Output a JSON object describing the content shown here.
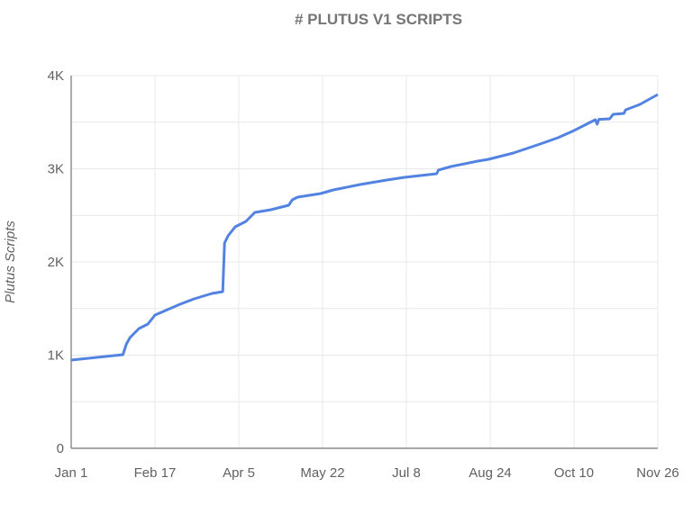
{
  "chart_data": {
    "type": "line",
    "title": "# PLUTUS V1 SCRIPTS",
    "xlabel": "",
    "ylabel": "Plutus Scripts",
    "x_ticks": [
      "Jan 1",
      "Feb 17",
      "Apr 5",
      "May 22",
      "Jul 8",
      "Aug 24",
      "Oct 10",
      "Nov 26"
    ],
    "y_ticks": [
      "0",
      "1K",
      "2K",
      "3K",
      "4K"
    ],
    "ylim": [
      0,
      4000
    ],
    "grid": true,
    "line_color": "#5383e0",
    "series": [
      {
        "x": [
          "Jan 1",
          "Jan 30",
          "Feb 1",
          "Feb 3",
          "Feb 8",
          "Feb 13",
          "Feb 17",
          "Feb 24",
          "Mar 3",
          "Mar 11",
          "Mar 21",
          "Mar 27",
          "Mar 28",
          "Mar 30",
          "Apr 3",
          "Apr 9",
          "Apr 14",
          "Apr 23",
          "May 3",
          "May 5",
          "May 8",
          "May 21",
          "May 28",
          "Jun 12",
          "Jun 27",
          "Jul 7",
          "Jul 25",
          "Jul 26",
          "Aug 2",
          "Aug 17",
          "Aug 23",
          "Sep 6",
          "Sep 21",
          "Oct 1",
          "Oct 9",
          "Oct 19",
          "Oct 22",
          "Oct 23",
          "Oct 24",
          "Oct 30",
          "Nov 1",
          "Nov 7",
          "Nov 8",
          "Nov 16",
          "Nov 26"
        ],
        "values": [
          947,
          1005,
          1120,
          1188,
          1285,
          1333,
          1430,
          1488,
          1546,
          1604,
          1662,
          1681,
          2203,
          2280,
          2377,
          2435,
          2531,
          2560,
          2609,
          2667,
          2696,
          2734,
          2773,
          2831,
          2879,
          2908,
          2947,
          2986,
          3024,
          3082,
          3101,
          3169,
          3266,
          3333,
          3401,
          3498,
          3527,
          3478,
          3530,
          3536,
          3585,
          3594,
          3633,
          3691,
          3797
        ]
      }
    ]
  }
}
